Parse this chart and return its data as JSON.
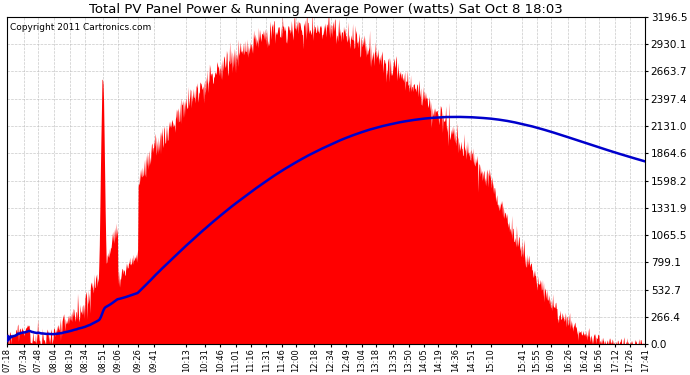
{
  "title": "Total PV Panel Power & Running Average Power (watts) Sat Oct 8 18:03",
  "copyright": "Copyright 2011 Cartronics.com",
  "background_color": "#ffffff",
  "plot_bg_color": "#ffffff",
  "yticks": [
    0.0,
    266.4,
    532.7,
    799.1,
    1065.5,
    1331.9,
    1598.2,
    1864.6,
    2131.0,
    2397.4,
    2663.7,
    2930.1,
    3196.5
  ],
  "ymax": 3196.5,
  "ymin": 0.0,
  "fill_color": "#ff0000",
  "avg_color": "#0000cc",
  "grid_color": "#bbbbbb",
  "title_fontsize": 9.5,
  "x_labels": [
    "07:18",
    "07:34",
    "07:48",
    "08:04",
    "08:19",
    "08:34",
    "08:51",
    "09:06",
    "09:26",
    "09:41",
    "10:13",
    "10:31",
    "10:46",
    "11:01",
    "11:16",
    "11:31",
    "11:46",
    "12:00",
    "12:18",
    "12:34",
    "12:49",
    "13:04",
    "13:18",
    "13:35",
    "13:50",
    "14:05",
    "14:19",
    "14:36",
    "14:51",
    "15:10",
    "15:41",
    "15:55",
    "16:09",
    "16:26",
    "16:42",
    "16:56",
    "17:12",
    "17:26",
    "17:41"
  ],
  "figwidth": 6.9,
  "figheight": 3.75,
  "dpi": 100
}
